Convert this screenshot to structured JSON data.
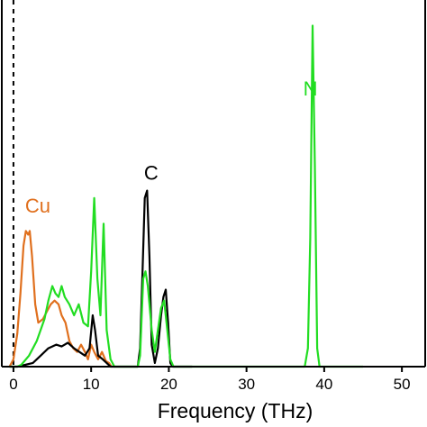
{
  "chart_data": {
    "type": "line",
    "title": "",
    "xlabel": "Frequency (THz)",
    "ylabel": "",
    "xlim": [
      -1.5,
      53
    ],
    "ylim": [
      0,
      1.0
    ],
    "xticks": [
      0,
      10,
      20,
      30,
      40,
      50
    ],
    "xtick_labels": [
      "0",
      "10",
      "20",
      "30",
      "40",
      "50"
    ],
    "grid": false,
    "legend": "none",
    "reference_line": {
      "x": 0,
      "style": "dashed",
      "color": "#000000"
    },
    "series": [
      {
        "name": "Cu",
        "color": "#E0701E",
        "points": [
          [
            -0.5,
            0.0
          ],
          [
            0.0,
            0.02
          ],
          [
            0.5,
            0.09
          ],
          [
            0.9,
            0.2
          ],
          [
            1.3,
            0.33
          ],
          [
            1.6,
            0.37
          ],
          [
            1.9,
            0.36
          ],
          [
            2.1,
            0.37
          ],
          [
            2.4,
            0.3
          ],
          [
            2.8,
            0.17
          ],
          [
            3.2,
            0.12
          ],
          [
            3.8,
            0.13
          ],
          [
            4.3,
            0.15
          ],
          [
            4.8,
            0.17
          ],
          [
            5.3,
            0.18
          ],
          [
            5.8,
            0.17
          ],
          [
            6.2,
            0.14
          ],
          [
            6.7,
            0.12
          ],
          [
            7.2,
            0.07
          ],
          [
            7.7,
            0.05
          ],
          [
            8.2,
            0.04
          ],
          [
            8.7,
            0.06
          ],
          [
            9.2,
            0.04
          ],
          [
            9.6,
            0.02
          ],
          [
            10.0,
            0.06
          ],
          [
            10.4,
            0.04
          ],
          [
            10.9,
            0.02
          ],
          [
            11.4,
            0.04
          ],
          [
            11.9,
            0.015
          ],
          [
            12.3,
            0.01
          ],
          [
            12.6,
            0.0
          ]
        ]
      },
      {
        "name": "C",
        "color": "#000000",
        "points": [
          [
            -0.5,
            0.0
          ],
          [
            0.5,
            0.0
          ],
          [
            1.5,
            0.005
          ],
          [
            2.5,
            0.01
          ],
          [
            3.5,
            0.03
          ],
          [
            4.5,
            0.05
          ],
          [
            5.5,
            0.06
          ],
          [
            6.2,
            0.055
          ],
          [
            7.0,
            0.065
          ],
          [
            7.8,
            0.05
          ],
          [
            8.5,
            0.04
          ],
          [
            9.2,
            0.03
          ],
          [
            9.8,
            0.05
          ],
          [
            10.2,
            0.14
          ],
          [
            10.5,
            0.1
          ],
          [
            10.9,
            0.03
          ],
          [
            11.5,
            0.02
          ],
          [
            12.0,
            0.01
          ],
          [
            12.5,
            0.0
          ],
          [
            16.0,
            0.0
          ],
          [
            16.3,
            0.05
          ],
          [
            16.6,
            0.25
          ],
          [
            16.9,
            0.46
          ],
          [
            17.2,
            0.48
          ],
          [
            17.5,
            0.3
          ],
          [
            17.8,
            0.06
          ],
          [
            18.2,
            0.01
          ],
          [
            18.6,
            0.05
          ],
          [
            19.0,
            0.14
          ],
          [
            19.3,
            0.19
          ],
          [
            19.6,
            0.21
          ],
          [
            19.9,
            0.12
          ],
          [
            20.2,
            0.01
          ],
          [
            20.5,
            0.0
          ],
          [
            23.0,
            0.0
          ]
        ]
      },
      {
        "name": "N",
        "color": "#22DD22",
        "points": [
          [
            -0.5,
            0.0
          ],
          [
            0.5,
            0.0
          ],
          [
            1.0,
            0.005
          ],
          [
            2.0,
            0.03
          ],
          [
            3.0,
            0.07
          ],
          [
            4.0,
            0.13
          ],
          [
            4.5,
            0.18
          ],
          [
            5.0,
            0.22
          ],
          [
            5.4,
            0.2
          ],
          [
            5.8,
            0.19
          ],
          [
            6.2,
            0.22
          ],
          [
            6.6,
            0.19
          ],
          [
            7.2,
            0.17
          ],
          [
            7.8,
            0.14
          ],
          [
            8.4,
            0.17
          ],
          [
            9.0,
            0.12
          ],
          [
            9.6,
            0.11
          ],
          [
            10.0,
            0.26
          ],
          [
            10.4,
            0.46
          ],
          [
            10.8,
            0.24
          ],
          [
            11.2,
            0.14
          ],
          [
            11.6,
            0.39
          ],
          [
            12.0,
            0.1
          ],
          [
            12.5,
            0.02
          ],
          [
            13.0,
            0.0
          ],
          [
            16.0,
            0.0
          ],
          [
            16.3,
            0.03
          ],
          [
            16.7,
            0.24
          ],
          [
            17.0,
            0.26
          ],
          [
            17.3,
            0.22
          ],
          [
            17.8,
            0.1
          ],
          [
            18.2,
            0.04
          ],
          [
            18.6,
            0.1
          ],
          [
            19.0,
            0.16
          ],
          [
            19.4,
            0.18
          ],
          [
            19.8,
            0.1
          ],
          [
            20.2,
            0.02
          ],
          [
            20.6,
            0.0
          ],
          [
            37.5,
            0.0
          ],
          [
            37.9,
            0.05
          ],
          [
            38.2,
            0.35
          ],
          [
            38.5,
            0.93
          ],
          [
            38.8,
            0.55
          ],
          [
            39.1,
            0.05
          ],
          [
            39.4,
            0.0
          ],
          [
            45.0,
            0.0
          ]
        ]
      }
    ],
    "annotations": [
      {
        "text": "Cu",
        "x": 1.5,
        "y": 0.42,
        "color": "#E0701E"
      },
      {
        "text": "C",
        "x": 16.8,
        "y": 0.51,
        "color": "#000000"
      },
      {
        "text": "N",
        "x": 37.3,
        "y": 0.74,
        "color": "#22DD22"
      }
    ]
  }
}
